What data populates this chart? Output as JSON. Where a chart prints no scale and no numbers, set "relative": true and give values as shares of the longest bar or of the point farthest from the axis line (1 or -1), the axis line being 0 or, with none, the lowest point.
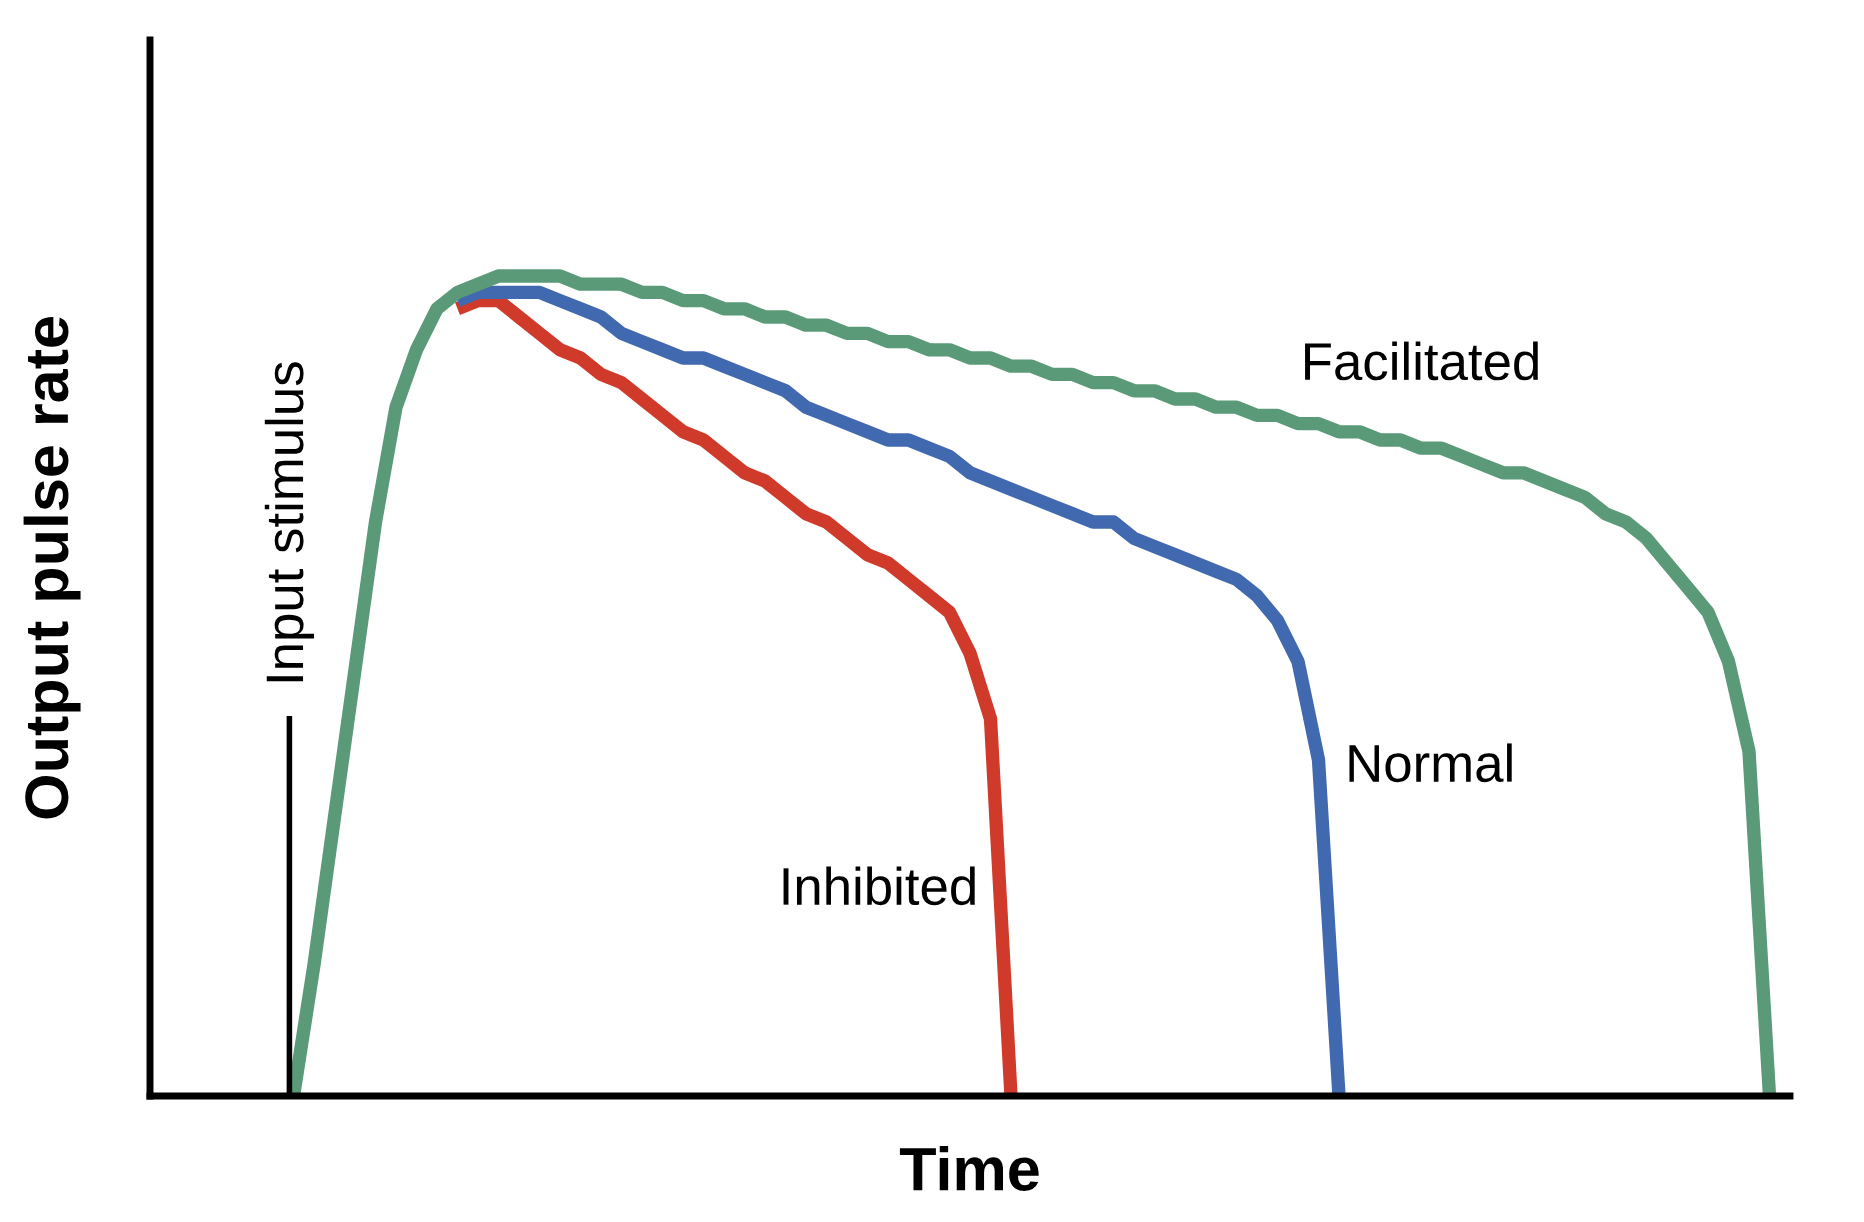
{
  "chart_data": {
    "type": "line",
    "relative": true,
    "xlabel": "Time",
    "ylabel": "Output pulse rate",
    "categories": [
      null,
      null,
      null,
      null,
      null,
      null,
      null,
      null,
      null,
      null,
      null,
      null,
      null,
      null,
      null,
      null,
      null,
      null,
      null,
      null,
      null,
      null,
      null,
      null,
      null,
      null,
      null,
      null,
      null,
      null,
      null,
      null,
      null,
      null,
      null,
      null,
      null,
      null,
      null,
      null,
      null,
      null,
      null,
      null,
      null,
      null,
      null,
      null,
      null,
      null,
      null,
      null,
      null,
      null,
      null,
      null,
      null,
      null,
      null,
      null,
      null,
      null,
      null,
      null,
      null,
      null,
      null,
      null,
      null,
      null,
      null,
      null,
      null,
      null,
      null,
      null,
      null,
      null,
      null,
      null,
      null
    ],
    "series": [
      {
        "name": "Inhibited",
        "color": "#d03a2a",
        "values": [
          null,
          null,
          null,
          null,
          null,
          null,
          null,
          null,
          null,
          null,
          null,
          null,
          null,
          null,
          null,
          0.96,
          0.97,
          0.97,
          0.95,
          0.93,
          0.91,
          0.9,
          0.88,
          0.87,
          0.85,
          0.83,
          0.81,
          0.8,
          0.78,
          0.76,
          0.75,
          0.73,
          0.71,
          0.7,
          0.68,
          0.66,
          0.65,
          0.63,
          0.61,
          0.59,
          0.54,
          0.46,
          0,
          null,
          null,
          null,
          null,
          null,
          null,
          null,
          null,
          null,
          null,
          null,
          null,
          null,
          null,
          null,
          null,
          null,
          null,
          null,
          null,
          null,
          null,
          null,
          null,
          null,
          null,
          null,
          null,
          null,
          null,
          null,
          null,
          null,
          null,
          null,
          null,
          null,
          null
        ]
      },
      {
        "name": "Normal",
        "color": "#4169b0",
        "values": [
          null,
          null,
          null,
          null,
          null,
          null,
          null,
          null,
          null,
          null,
          null,
          null,
          null,
          null,
          null,
          0.97,
          0.98,
          0.98,
          0.98,
          0.98,
          0.97,
          0.96,
          0.95,
          0.93,
          0.92,
          0.91,
          0.9,
          0.9,
          0.89,
          0.88,
          0.87,
          0.86,
          0.84,
          0.83,
          0.82,
          0.81,
          0.8,
          0.8,
          0.79,
          0.78,
          0.76,
          0.75,
          0.74,
          0.73,
          0.72,
          0.71,
          0.7,
          0.7,
          0.68,
          0.67,
          0.66,
          0.65,
          0.64,
          0.63,
          0.61,
          0.58,
          0.53,
          0.41,
          0,
          null,
          null,
          null,
          null,
          null,
          null,
          null,
          null,
          null,
          null,
          null,
          null,
          null,
          null,
          null,
          null,
          null,
          null,
          null,
          null,
          null,
          null
        ]
      },
      {
        "name": "Facilitated",
        "color": "#5a9a78",
        "values": [
          null,
          null,
          null,
          null,
          null,
          null,
          null,
          0,
          0.16,
          0.34,
          0.52,
          0.7,
          0.84,
          0.91,
          0.96,
          0.98,
          0.99,
          1.0,
          1.0,
          1.0,
          1.0,
          0.99,
          0.99,
          0.99,
          0.98,
          0.98,
          0.97,
          0.97,
          0.96,
          0.96,
          0.95,
          0.95,
          0.94,
          0.94,
          0.93,
          0.93,
          0.92,
          0.92,
          0.91,
          0.91,
          0.9,
          0.9,
          0.89,
          0.89,
          0.88,
          0.88,
          0.87,
          0.87,
          0.86,
          0.86,
          0.85,
          0.85,
          0.84,
          0.84,
          0.83,
          0.83,
          0.82,
          0.82,
          0.81,
          0.81,
          0.8,
          0.8,
          0.79,
          0.79,
          0.78,
          0.77,
          0.76,
          0.76,
          0.75,
          0.74,
          0.73,
          0.71,
          0.7,
          0.68,
          0.65,
          0.62,
          0.59,
          0.53,
          0.42,
          0,
          null
        ]
      }
    ],
    "annotations": [
      "Input stimulus"
    ],
    "legend": false,
    "marker": "none",
    "line_style": "solid"
  }
}
